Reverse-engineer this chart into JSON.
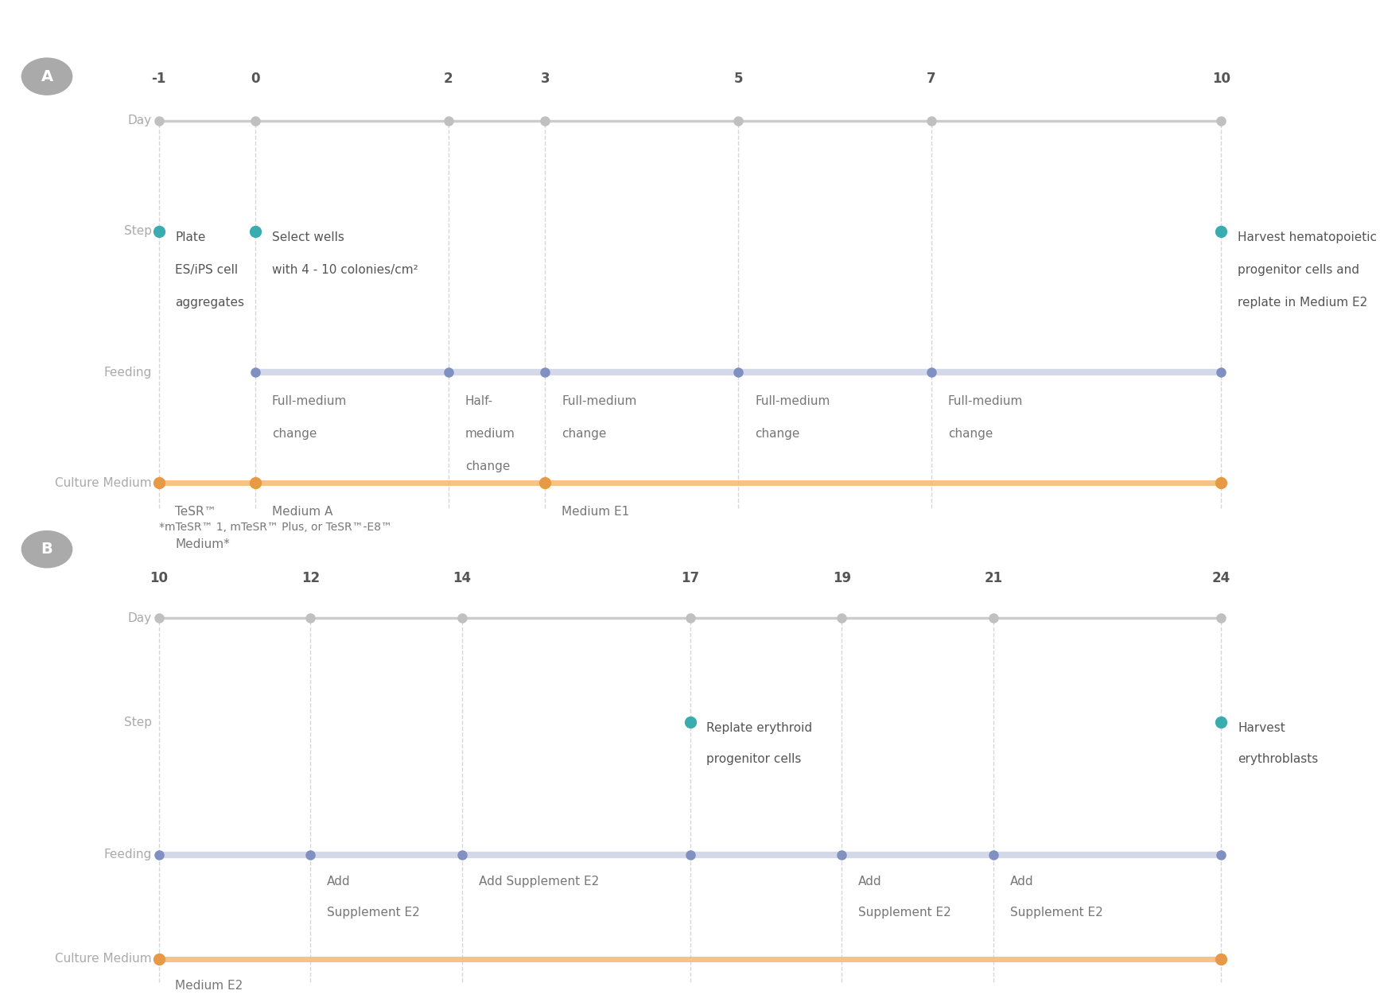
{
  "panel_A": {
    "days": [
      -1,
      0,
      2,
      3,
      5,
      7,
      10
    ],
    "day_labels": [
      "-1",
      "0",
      "2",
      "3",
      "5",
      "7",
      "10"
    ],
    "feeding_days": [
      0,
      2,
      3,
      5,
      7,
      10
    ],
    "culture_medium_dots": [
      -1,
      0,
      3,
      10
    ],
    "step_items": [
      {
        "day": -1,
        "lines": [
          "Plate",
          "ES/iPS cell",
          "aggregates"
        ]
      },
      {
        "day": 0,
        "lines": [
          "Select wells",
          "with 4 - 10 colonies/cm²"
        ]
      },
      {
        "day": 10,
        "lines": [
          "Harvest hematopoietic",
          "progenitor cells and",
          "replate in Medium E2"
        ]
      }
    ],
    "feeding_items": [
      {
        "day": 0,
        "lines": [
          "Full-medium",
          "change"
        ]
      },
      {
        "day": 2,
        "lines": [
          "Half-",
          "medium",
          "change"
        ]
      },
      {
        "day": 3,
        "lines": [
          "Full-medium",
          "change"
        ]
      },
      {
        "day": 5,
        "lines": [
          "Full-medium",
          "change"
        ]
      },
      {
        "day": 7,
        "lines": [
          "Full-medium",
          "change"
        ]
      }
    ],
    "culture_items": [
      {
        "day": -1,
        "lines": [
          "TeSR™",
          "Medium*"
        ]
      },
      {
        "day": 0,
        "lines": [
          "Medium A"
        ]
      },
      {
        "day": 3,
        "lines": [
          "Medium E1"
        ]
      }
    ],
    "footnote": "*mTeSR™ 1, mTeSR™ Plus, or TeSR™-E8™"
  },
  "panel_B": {
    "days": [
      10,
      12,
      14,
      17,
      19,
      21,
      24
    ],
    "day_labels": [
      "10",
      "12",
      "14",
      "17",
      "19",
      "21",
      "24"
    ],
    "feeding_days": [
      10,
      12,
      14,
      17,
      19,
      21,
      24
    ],
    "culture_medium_dots": [
      10,
      24
    ],
    "step_items": [
      {
        "day": 17,
        "lines": [
          "Replate erythroid",
          "progenitor cells"
        ]
      },
      {
        "day": 24,
        "lines": [
          "Harvest",
          "erythroblasts"
        ]
      }
    ],
    "feeding_items": [
      {
        "day": 12,
        "lines": [
          "Add",
          "Supplement E2"
        ]
      },
      {
        "day": 14,
        "lines": [
          "Add Supplement E2"
        ]
      },
      {
        "day": 19,
        "lines": [
          "Add",
          "Supplement E2"
        ]
      },
      {
        "day": 21,
        "lines": [
          "Add",
          "Supplement E2"
        ]
      }
    ],
    "culture_items": [
      {
        "day": 10,
        "lines": [
          "Medium E2"
        ]
      }
    ],
    "footnote": ""
  },
  "colors": {
    "timeline": "#cccccc",
    "day_dot": "#c0c0c0",
    "day_number": "#555555",
    "feeding_line": "#b8c0dc",
    "feeding_dot": "#8090c0",
    "culture_line": "#f5b870",
    "culture_dot": "#e89945",
    "step_dot": "#3aacb0",
    "label_text": "#aaaaaa",
    "step_text": "#555555",
    "feeding_text": "#777777",
    "culture_text": "#777777",
    "footnote_text": "#777777",
    "vline": "#cccccc",
    "badge_bg": "#aaaaaa",
    "badge_text": "#ffffff"
  }
}
